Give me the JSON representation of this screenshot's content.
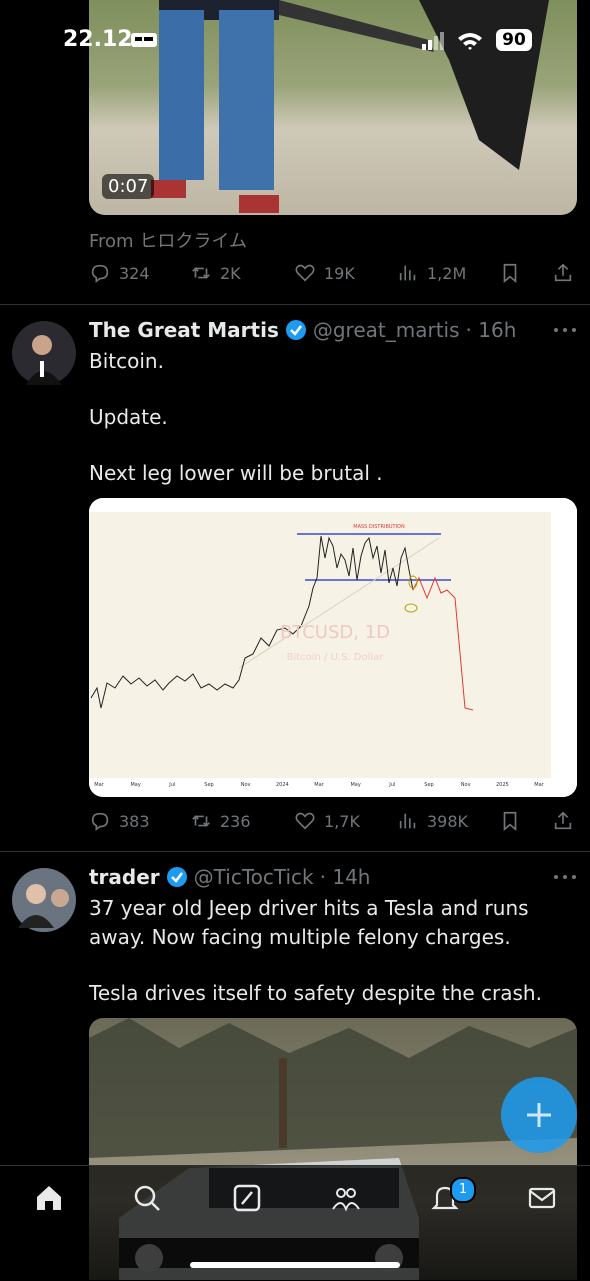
{
  "status_bar": {
    "time": "22.12",
    "battery": "90"
  },
  "feed": [
    {
      "video_duration": "0:07",
      "source": "From ヒロクライム",
      "stats": {
        "replies": "324",
        "reposts": "2K",
        "likes": "19K",
        "views": "1,2M"
      }
    },
    {
      "author": "The Great Martis",
      "handle": "@great_martis",
      "time": "· 16h",
      "text": [
        "Bitcoin.",
        "Update.",
        "Next leg lower will be brutal ."
      ],
      "chart_image": {
        "label": "MASS DISTRIBUTION",
        "watermark": "BTCUSD, 1D",
        "subtitle": "Bitcoin / U.S. Dollar",
        "x_labels": [
          "Mar",
          "May",
          "Jul",
          "Sep",
          "Nov",
          "2024",
          "Mar",
          "May",
          "Jul",
          "Sep",
          "Nov",
          "2025",
          "Mar"
        ]
      },
      "stats": {
        "replies": "383",
        "reposts": "236",
        "likes": "1,7K",
        "views": "398K"
      }
    },
    {
      "author": "trader",
      "handle": "@TicTocTick",
      "time": "· 14h",
      "text": [
        "37 year old Jeep driver hits a Tesla and runs away. Now facing multiple felony charges.",
        "Tesla drives itself to safety despite the crash."
      ]
    }
  ],
  "nav": {
    "notifications_badge": "1"
  }
}
